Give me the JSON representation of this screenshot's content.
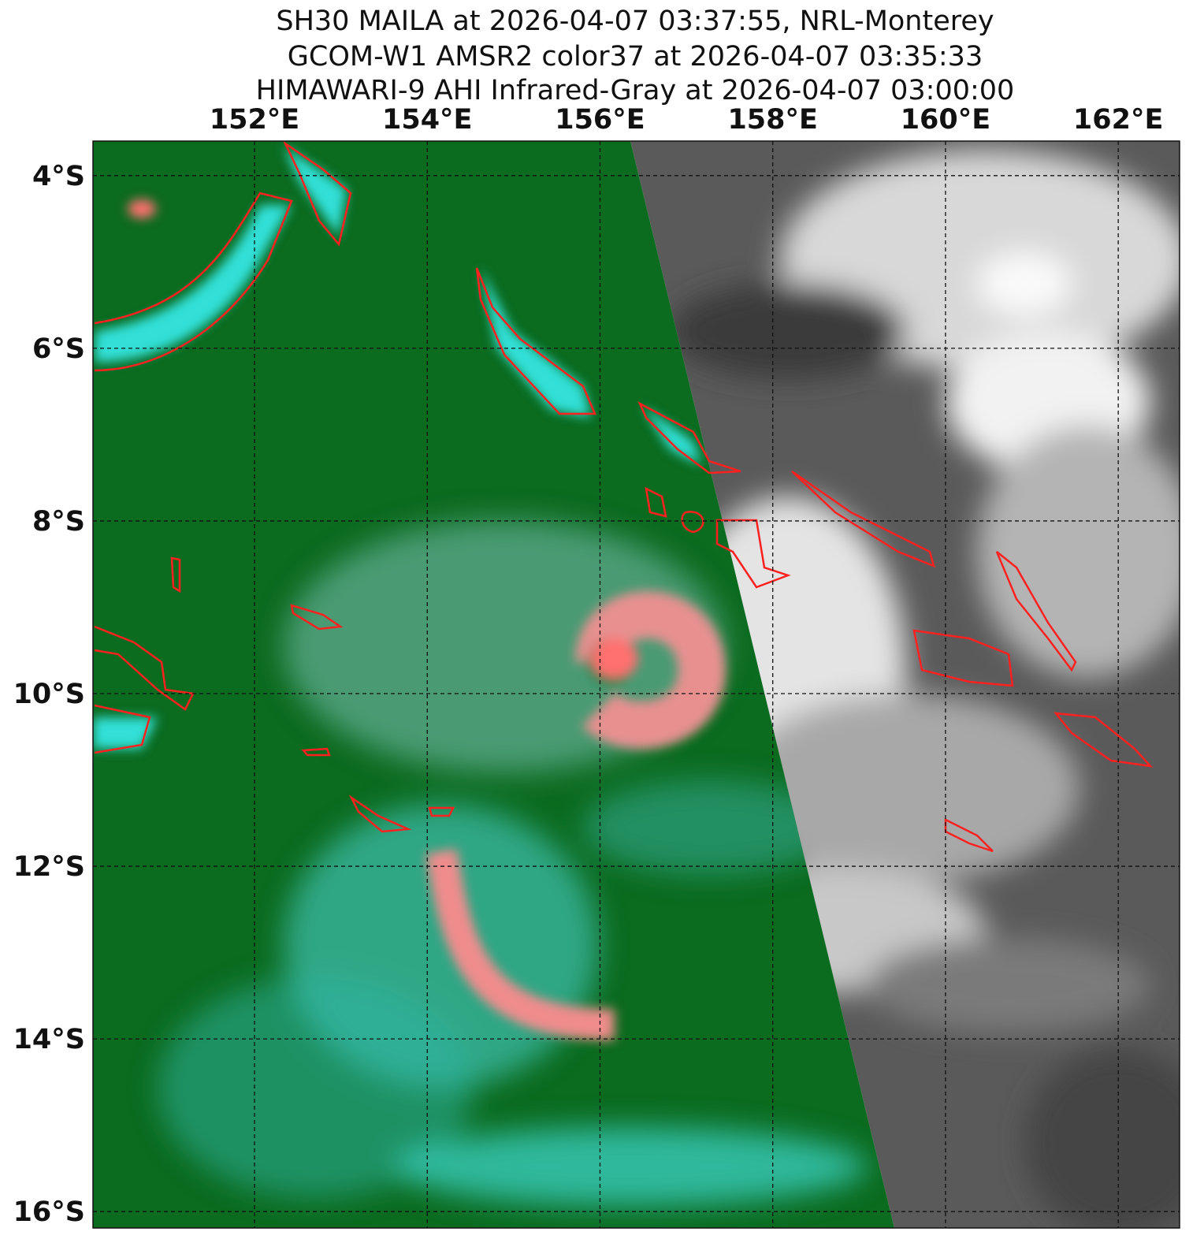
{
  "chart_data": {
    "type": "map",
    "title_lines": [
      "SH30 MAILA at 2026-04-07 03:37:55, NRL-Monterey",
      "GCOM-W1 AMSR2 color37 at 2026-04-07 03:35:33",
      "HIMAWARI-9 AHI Infrared-Gray at 2026-04-07 03:00:00"
    ],
    "xlim": [
      150.13,
      162.71
    ],
    "ylim": [
      -16.19,
      -3.6
    ],
    "xticks": [
      {
        "value": 152,
        "label": "152°E"
      },
      {
        "value": 154,
        "label": "154°E"
      },
      {
        "value": 156,
        "label": "156°E"
      },
      {
        "value": 158,
        "label": "158°E"
      },
      {
        "value": 160,
        "label": "160°E"
      },
      {
        "value": 162,
        "label": "162°E"
      }
    ],
    "yticks": [
      {
        "value": -4,
        "label": "4°S"
      },
      {
        "value": -6,
        "label": "6°S"
      },
      {
        "value": -8,
        "label": "8°S"
      },
      {
        "value": -10,
        "label": "10°S"
      },
      {
        "value": -12,
        "label": "12°S"
      },
      {
        "value": -14,
        "label": "14°S"
      },
      {
        "value": -16,
        "label": "16°S"
      }
    ],
    "grid": true
  }
}
